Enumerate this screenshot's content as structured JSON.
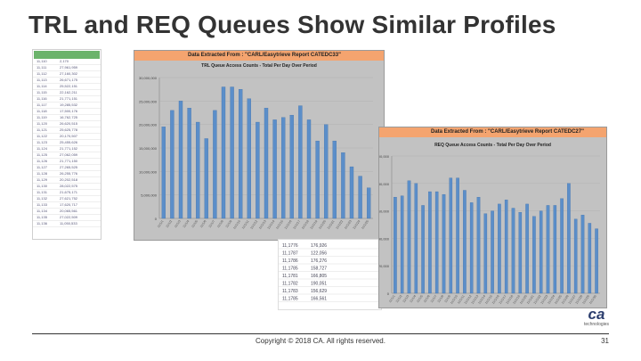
{
  "slide": {
    "title": "TRL and REQ Queues Show Similar Profiles",
    "footer": "Copyright © 2018 CA. All rights reserved.",
    "page_number": "31",
    "logo_mark": "ca",
    "logo_sub": "technologies"
  },
  "colors": {
    "bar": "#5b8ec9",
    "banner": "#f4a46f",
    "panel": "#c2c2c2"
  },
  "chart_data": [
    {
      "type": "bar",
      "banner": "Data Extracted From :  \"CARL/Easytrieve Report CATEDC33\"",
      "title": "TRL Queue Access Counts - Total Per Day Over Period",
      "y_ticks": [
        "30,000,000",
        "25,000,000",
        "20,000,000",
        "15,000,000",
        "10,000,000",
        "5,000,000",
        "0"
      ],
      "ylim": [
        0,
        30000000
      ],
      "values": [
        19.5,
        23,
        25,
        23.5,
        20.5,
        17,
        23,
        28,
        28,
        27.5,
        25.5,
        20.5,
        23.5,
        21,
        21.5,
        22,
        24,
        21,
        16.5,
        20,
        16.5,
        14,
        11,
        9,
        6.5
      ]
    },
    {
      "type": "bar",
      "banner": "Data Extracted From :  \"CARL/Easytrieve Report CATEDC27\"",
      "title": "REQ Queue Access Counts - Total Per Day Over Period",
      "y_ticks": [
        "100,000",
        "80,000",
        "60,000",
        "40,000",
        "20,000",
        "0"
      ],
      "ylim": [
        0,
        100000
      ],
      "values": [
        70,
        71,
        82,
        80,
        64,
        74,
        74,
        72,
        84,
        84,
        75,
        66,
        70,
        58,
        60,
        65,
        68,
        62,
        59,
        65,
        56,
        60,
        64,
        64,
        69,
        80,
        54,
        57,
        51,
        47
      ]
    }
  ],
  "sheet_rows": [
    "2,170",
    "27,961,959",
    "27,160,302",
    "26,671,175",
    "25,522,151",
    "22,162,211",
    "21,771,151",
    "19,285,532",
    "17,500,176",
    "16,762,725",
    "26,620,515",
    "25,625,778",
    "20,170,507",
    "25,455,626",
    "21,771,152",
    "27,062,059",
    "21,771,150",
    "27,265,525",
    "26,255,776",
    "20,202,518",
    "28,022,575",
    "21,675,171",
    "27,621,752",
    "17,620,717",
    "20,065,561",
    "27,022,509",
    "11,050,533"
  ],
  "lower_sheet_rows": [
    [
      "11,1776",
      "176,926"
    ],
    [
      "11,1787",
      "122,056"
    ],
    [
      "11,1786",
      "176,276"
    ],
    [
      "11,1785",
      "158,727"
    ],
    [
      "11,1781",
      "166,805"
    ],
    [
      "11,1782",
      "190,051"
    ],
    [
      "11,1783",
      "156,629"
    ],
    [
      "11,1785",
      "166,561"
    ]
  ]
}
